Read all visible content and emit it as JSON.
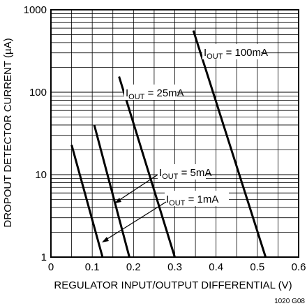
{
  "chart_data": {
    "type": "line",
    "xlabel": "REGULATOR INPUT/OUTPUT DIFFERENTIAL (V)",
    "ylabel": "DROPOUT DETECTOR CURRENT (µA)",
    "xlim": [
      0,
      0.6
    ],
    "ylim": [
      1,
      1000
    ],
    "y_scale": "log",
    "grid": true,
    "x_ticks": [
      "0",
      "0.1",
      "0.2",
      "0.3",
      "0.4",
      "0.5",
      "0.6"
    ],
    "y_ticks": [
      "1",
      "10",
      "100",
      "1000"
    ],
    "series": [
      {
        "name": "1mA",
        "label_prefix": "I",
        "label_sub": "OUT",
        "label_suffix": " = 1mA",
        "x": [
          0.05,
          0.125
        ],
        "y": [
          23,
          1
        ]
      },
      {
        "name": "5mA",
        "label_prefix": "I",
        "label_sub": "OUT",
        "label_suffix": " = 5mA",
        "x": [
          0.105,
          0.19
        ],
        "y": [
          40,
          1
        ]
      },
      {
        "name": "25mA",
        "label_prefix": "I",
        "label_sub": "OUT",
        "label_suffix": " = 25mA",
        "x": [
          0.165,
          0.3
        ],
        "y": [
          155,
          1
        ]
      },
      {
        "name": "100mA",
        "label_prefix": "I",
        "label_sub": "OUT",
        "label_suffix": " = 100mA",
        "x": [
          0.345,
          0.52
        ],
        "y": [
          560,
          1
        ]
      }
    ],
    "figure_code": "1020 G08"
  }
}
